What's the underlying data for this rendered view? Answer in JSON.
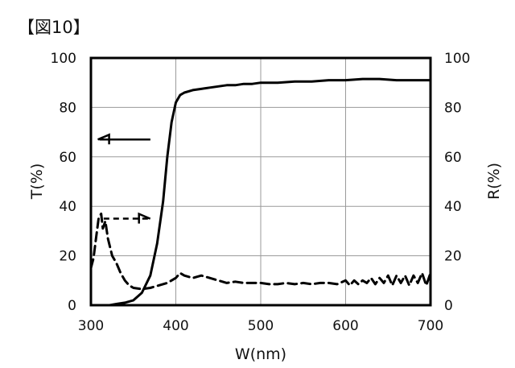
{
  "figure_label": "【図10】",
  "chart_data": {
    "type": "line",
    "xlabel": "W(nm)",
    "ylabel_left": "T(%)",
    "ylabel_right": "R(%)",
    "xlim": [
      300,
      700
    ],
    "ylim_left": [
      0,
      100
    ],
    "ylim_right": [
      0,
      100
    ],
    "x_ticks": [
      300,
      400,
      500,
      600,
      700
    ],
    "y_ticks": [
      0,
      20,
      40,
      60,
      80,
      100
    ],
    "grid": true,
    "series": [
      {
        "axis": "left",
        "style": "solid",
        "color": "#000000",
        "points": [
          [
            322,
            0
          ],
          [
            330,
            0.5
          ],
          [
            340,
            1
          ],
          [
            350,
            2
          ],
          [
            360,
            5
          ],
          [
            370,
            12
          ],
          [
            378,
            25
          ],
          [
            385,
            42
          ],
          [
            390,
            60
          ],
          [
            395,
            74
          ],
          [
            400,
            82
          ],
          [
            405,
            85
          ],
          [
            410,
            86
          ],
          [
            420,
            87
          ],
          [
            430,
            87.5
          ],
          [
            440,
            88
          ],
          [
            450,
            88.5
          ],
          [
            460,
            89
          ],
          [
            470,
            89
          ],
          [
            480,
            89.5
          ],
          [
            490,
            89.5
          ],
          [
            500,
            90
          ],
          [
            520,
            90
          ],
          [
            540,
            90.5
          ],
          [
            560,
            90.5
          ],
          [
            580,
            91
          ],
          [
            600,
            91
          ],
          [
            620,
            91.5
          ],
          [
            640,
            91.5
          ],
          [
            660,
            91
          ],
          [
            680,
            91
          ],
          [
            700,
            91
          ]
        ]
      },
      {
        "axis": "right",
        "style": "dashed",
        "color": "#000000",
        "points": [
          [
            300,
            15
          ],
          [
            303,
            19
          ],
          [
            306,
            27
          ],
          [
            309,
            35
          ],
          [
            312,
            37
          ],
          [
            314,
            31
          ],
          [
            317,
            34
          ],
          [
            320,
            27
          ],
          [
            325,
            20
          ],
          [
            330,
            17
          ],
          [
            335,
            13
          ],
          [
            340,
            10
          ],
          [
            345,
            8
          ],
          [
            350,
            7
          ],
          [
            360,
            6.5
          ],
          [
            370,
            7
          ],
          [
            380,
            8
          ],
          [
            390,
            9
          ],
          [
            400,
            11
          ],
          [
            405,
            13
          ],
          [
            410,
            12
          ],
          [
            420,
            11
          ],
          [
            430,
            12
          ],
          [
            440,
            11
          ],
          [
            450,
            10
          ],
          [
            460,
            9
          ],
          [
            470,
            9.5
          ],
          [
            480,
            9
          ],
          [
            490,
            9
          ],
          [
            500,
            9
          ],
          [
            510,
            8.5
          ],
          [
            520,
            8.5
          ],
          [
            530,
            9
          ],
          [
            540,
            8.5
          ],
          [
            550,
            9
          ],
          [
            560,
            8.5
          ],
          [
            570,
            9
          ],
          [
            580,
            9
          ],
          [
            590,
            8.5
          ],
          [
            600,
            10
          ],
          [
            605,
            8
          ],
          [
            610,
            10
          ],
          [
            615,
            8.5
          ],
          [
            620,
            10
          ],
          [
            625,
            9
          ],
          [
            630,
            11
          ],
          [
            635,
            8.5
          ],
          [
            640,
            11
          ],
          [
            645,
            9
          ],
          [
            650,
            12
          ],
          [
            655,
            8
          ],
          [
            660,
            12
          ],
          [
            665,
            9
          ],
          [
            670,
            12
          ],
          [
            675,
            8
          ],
          [
            680,
            12
          ],
          [
            685,
            9
          ],
          [
            690,
            13
          ],
          [
            695,
            8
          ],
          [
            700,
            13
          ]
        ]
      }
    ],
    "annotations": [
      {
        "type": "arrow",
        "direction": "left",
        "style": "solid",
        "from": [
          370,
          67
        ],
        "to": [
          310,
          67
        ]
      },
      {
        "type": "arrow",
        "direction": "right",
        "style": "dashed",
        "from": [
          315,
          35
        ],
        "to": [
          368,
          35
        ]
      }
    ]
  }
}
